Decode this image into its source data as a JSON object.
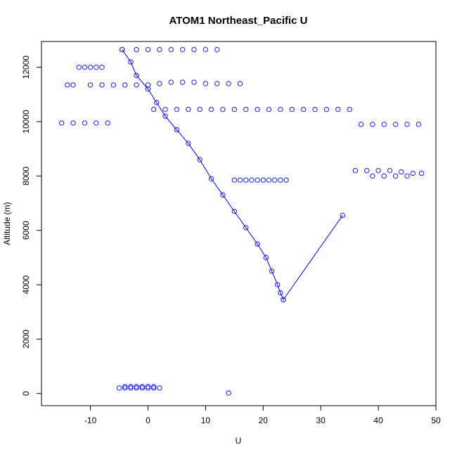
{
  "chart_data": {
    "type": "scatter",
    "title": "ATOM1 Northeast_Pacific U",
    "xlabel": "U",
    "ylabel": "Altitude (m)",
    "xlim": [
      -18.5,
      50
    ],
    "ylim": [
      -450,
      12950
    ],
    "xticks": [
      -10,
      0,
      10,
      20,
      30,
      40,
      50
    ],
    "yticks": [
      0,
      2000,
      4000,
      6000,
      8000,
      10000,
      12000
    ],
    "grid": false,
    "legend": "none",
    "colors": {
      "points": "#0000ff",
      "axes": "#000000",
      "background": "#ffffff"
    },
    "marker": "open-circle",
    "series": [
      {
        "line": true,
        "x": [
          -4.5,
          -3,
          -2,
          0,
          1.5,
          3,
          5,
          7,
          9,
          11,
          13,
          15,
          17,
          19,
          20.5,
          21.5,
          22.5,
          23,
          23.5
        ],
        "y": [
          12650,
          12200,
          11700,
          11200,
          10700,
          10200,
          9700,
          9200,
          8600,
          7900,
          7300,
          6700,
          6100,
          5500,
          5000,
          4500,
          4000,
          3700,
          3450
        ]
      },
      {
        "line": true,
        "x": [
          23.5,
          33.8
        ],
        "y": [
          3450,
          6550
        ]
      },
      {
        "line": false,
        "x": [
          -4.5,
          -2,
          0,
          2,
          4,
          6,
          8,
          10,
          12,
          14
        ],
        "y": [
          12650,
          12650,
          12650,
          12650,
          12650,
          12650,
          12650,
          12650,
          12650,
          13.5
        ]
      },
      {
        "line": false,
        "x": [
          -15,
          -13,
          -11,
          -9,
          -7,
          1,
          3,
          5,
          7,
          9,
          11,
          13,
          15,
          17,
          19,
          21,
          23,
          25,
          27,
          29,
          31,
          33,
          35,
          37,
          39,
          41,
          43,
          45,
          47
        ],
        "y": [
          9950,
          9950,
          9950,
          9950,
          9950,
          10450,
          10450,
          10450,
          10450,
          10450,
          10450,
          10450,
          10450,
          10450,
          10450,
          10450,
          10450,
          10450,
          10450,
          10450,
          10450,
          10450,
          10450,
          9900,
          9900,
          9900,
          9900,
          9900,
          9900
        ]
      },
      {
        "line": false,
        "x": [
          36,
          38,
          40,
          42,
          44,
          46,
          47.5,
          39,
          41,
          43,
          45
        ],
        "y": [
          8200,
          8200,
          8200,
          8200,
          8150,
          8100,
          8100,
          8000,
          8000,
          8000,
          8000
        ]
      },
      {
        "line": false,
        "x": [
          15,
          16,
          17,
          18,
          19,
          20,
          21,
          22,
          23,
          24
        ],
        "y": [
          7850,
          7850,
          7850,
          7850,
          7850,
          7850,
          7850,
          7850,
          7850,
          7850
        ]
      },
      {
        "line": false,
        "x": [
          -10,
          -9,
          -8,
          -12,
          -11,
          -14,
          -13,
          -10,
          -8,
          -6,
          -4,
          -2,
          0,
          2,
          4,
          6,
          8,
          10,
          12,
          14,
          16
        ],
        "y": [
          12000,
          12000,
          12000,
          12000,
          12000,
          11350,
          11350,
          11350,
          11350,
          11350,
          11350,
          11350,
          11350,
          11400,
          11450,
          11450,
          11450,
          11400,
          11400,
          11400,
          11400
        ]
      },
      {
        "line": false,
        "x": [
          -5,
          -4,
          -3,
          -2,
          -1,
          0,
          1,
          2,
          -4,
          -3,
          -2,
          -1,
          0,
          1
        ],
        "y": [
          200,
          200,
          200,
          200,
          200,
          200,
          200,
          200,
          250,
          250,
          250,
          250,
          250,
          250
        ]
      }
    ]
  }
}
